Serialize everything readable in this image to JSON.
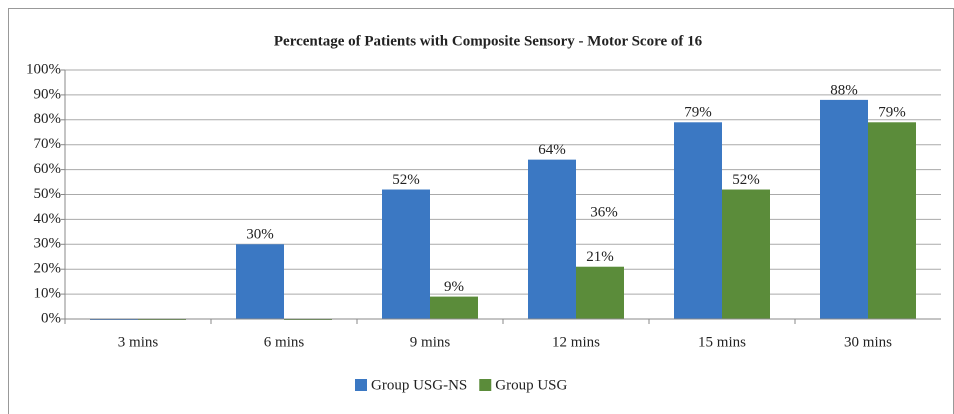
{
  "chart_data": {
    "type": "bar",
    "title": "Percentage of Patients with Composite Sensory - Motor Score of 16",
    "categories": [
      "3 mins",
      "6 mins",
      "9 mins",
      "12 mins",
      "15 mins",
      "30 mins"
    ],
    "series": [
      {
        "name": "Group USG-NS",
        "color": "#3b78c3",
        "values": [
          0,
          30,
          52,
          64,
          79,
          88
        ],
        "value_labels": [
          null,
          "30%",
          "52%",
          "64%",
          "79%",
          "88%"
        ]
      },
      {
        "name": "Group USG",
        "color": "#5b8c3a",
        "values": [
          0,
          0,
          9,
          21,
          52,
          79
        ],
        "value_labels": [
          null,
          null,
          "9%",
          "21%",
          "52%",
          "79%"
        ]
      }
    ],
    "annotations": [
      "36%"
    ],
    "ylim": [
      0,
      100
    ],
    "yticks": [
      {
        "value": 0,
        "label": "0%"
      },
      {
        "value": 10,
        "label": "10%"
      },
      {
        "value": 20,
        "label": "20%"
      },
      {
        "value": 30,
        "label": "30%"
      },
      {
        "value": 40,
        "label": "40%"
      },
      {
        "value": 50,
        "label": "50%"
      },
      {
        "value": 60,
        "label": "60%"
      },
      {
        "value": 70,
        "label": "70%"
      },
      {
        "value": 80,
        "label": "80%"
      },
      {
        "value": 90,
        "label": "90%"
      },
      {
        "value": 100,
        "label": "100%"
      }
    ],
    "grid": true
  }
}
